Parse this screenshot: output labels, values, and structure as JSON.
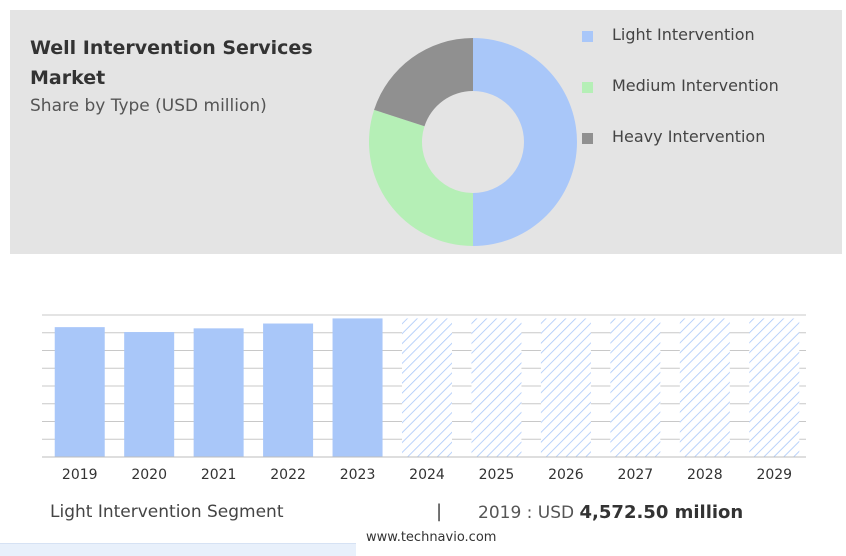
{
  "header": {
    "title": "Well Intervention Services Market",
    "subtitle": "Share by Type (USD million)"
  },
  "footer": {
    "segment_label": "Light Intervention Segment",
    "separator": "|",
    "value_prefix": "2019 : USD",
    "value_bold": "4,572.50 million",
    "source": "www.technavio.com"
  },
  "colors": {
    "light": "#a9c7f9",
    "medium": "#b5efb6",
    "heavy": "#909090",
    "forecast_hatch": "#a9c7f9",
    "panel_bg": "#e4e4e4",
    "grid": "#c8c8c8"
  },
  "chart_data": [
    {
      "type": "pie",
      "variant": "donut",
      "title": "Share by Type (USD million)",
      "legend_position": "right",
      "series": [
        {
          "name": "Light Intervention",
          "share": 50,
          "color": "#a9c7f9"
        },
        {
          "name": "Medium Intervention",
          "share": 30,
          "color": "#b5efb6"
        },
        {
          "name": "Heavy Intervention",
          "share": 20,
          "color": "#909090"
        }
      ]
    },
    {
      "type": "bar",
      "series_name": "Light Intervention Segment",
      "categories": [
        "2019",
        "2020",
        "2021",
        "2022",
        "2023",
        "2024",
        "2025",
        "2026",
        "2027",
        "2028",
        "2029"
      ],
      "values": [
        4572.5,
        4400,
        4530,
        4700,
        4880,
        4880,
        4880,
        4880,
        4880,
        4880,
        4880
      ],
      "forecast_from": "2024",
      "ylim": [
        0,
        5000
      ],
      "grid": true,
      "unit": "USD million"
    }
  ]
}
